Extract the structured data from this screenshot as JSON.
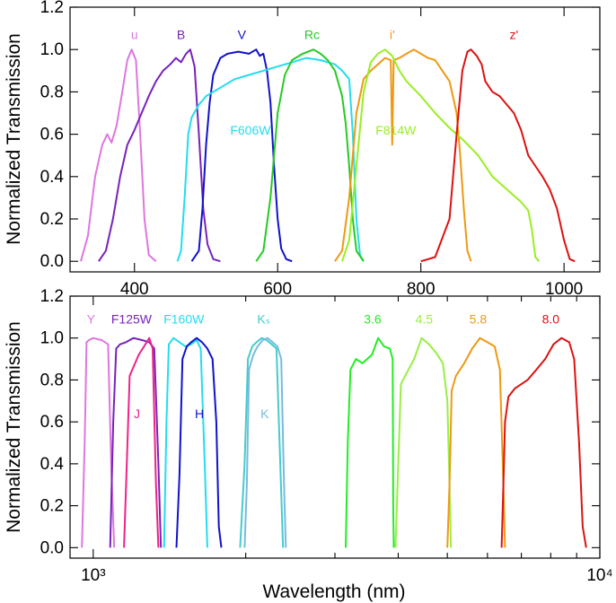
{
  "chart_data": [
    {
      "type": "line",
      "xlabel": "",
      "ylabel": "Normalized Transmission",
      "xlim": [
        310,
        1050
      ],
      "ylim": [
        -0.05,
        1.2
      ],
      "xscale": "linear",
      "grid": false,
      "x_tick_labels": [
        "400",
        "600",
        "800",
        "1000"
      ],
      "y_tick_labels": [
        "0.0",
        "0.2",
        "0.4",
        "0.6",
        "0.8",
        "1.0",
        "1.2"
      ],
      "series": [
        {
          "name": "u",
          "color": "#DD77DD",
          "label_at": [
            400,
            1.07
          ],
          "x": [
            325,
            335,
            345,
            355,
            362,
            368,
            375,
            382,
            390,
            396,
            402,
            408,
            414,
            420,
            430
          ],
          "y": [
            0,
            0.12,
            0.4,
            0.55,
            0.6,
            0.56,
            0.64,
            0.78,
            0.95,
            1.0,
            0.95,
            0.6,
            0.2,
            0.03,
            0
          ]
        },
        {
          "name": "B",
          "color": "#7722BB",
          "label_at": [
            465,
            1.07
          ],
          "x": [
            350,
            360,
            370,
            380,
            390,
            400,
            410,
            420,
            430,
            440,
            450,
            458,
            465,
            472,
            478,
            484,
            490,
            496,
            502,
            510,
            520
          ],
          "y": [
            0,
            0.05,
            0.2,
            0.4,
            0.55,
            0.62,
            0.7,
            0.78,
            0.85,
            0.9,
            0.93,
            0.96,
            0.94,
            0.98,
            1.0,
            0.92,
            0.6,
            0.25,
            0.08,
            0.01,
            0
          ]
        },
        {
          "name": "V",
          "color": "#1111CC",
          "label_at": [
            550,
            1.07
          ],
          "x": [
            480,
            490,
            495,
            500,
            505,
            510,
            520,
            530,
            545,
            560,
            570,
            575,
            580,
            585,
            590,
            595,
            600,
            605,
            612,
            620
          ],
          "y": [
            0,
            0.05,
            0.25,
            0.55,
            0.75,
            0.88,
            0.96,
            0.98,
            0.99,
            0.98,
            1.0,
            0.97,
            0.98,
            0.9,
            0.75,
            0.45,
            0.2,
            0.06,
            0.01,
            0
          ]
        },
        {
          "name": "F606W",
          "color": "#22DDEE",
          "label_at": [
            562,
            0.62
          ],
          "x": [
            460,
            465,
            470,
            475,
            480,
            490,
            500,
            520,
            540,
            560,
            580,
            600,
            620,
            640,
            660,
            680,
            690,
            700,
            705,
            710,
            715,
            720
          ],
          "y": [
            0,
            0.05,
            0.3,
            0.6,
            0.68,
            0.74,
            0.78,
            0.82,
            0.86,
            0.88,
            0.9,
            0.92,
            0.94,
            0.96,
            0.95,
            0.93,
            0.9,
            0.86,
            0.6,
            0.2,
            0.03,
            0
          ]
        },
        {
          "name": "Rc",
          "color": "#22CC22",
          "label_at": [
            648,
            1.07
          ],
          "x": [
            570,
            580,
            590,
            600,
            610,
            620,
            635,
            650,
            660,
            670,
            680,
            690,
            695,
            700,
            705,
            710,
            720
          ],
          "y": [
            0,
            0.05,
            0.3,
            0.7,
            0.88,
            0.95,
            0.98,
            1.0,
            0.98,
            0.95,
            0.9,
            0.78,
            0.65,
            0.45,
            0.2,
            0.05,
            0
          ]
        },
        {
          "name": "i'",
          "color": "#EE9911",
          "label_at": [
            760,
            1.07
          ],
          "x": [
            680,
            690,
            700,
            710,
            720,
            730,
            740,
            750,
            758,
            760,
            762,
            770,
            780,
            790,
            800,
            810,
            820,
            830,
            840,
            850,
            855,
            860,
            865,
            870
          ],
          "y": [
            0,
            0.05,
            0.3,
            0.7,
            0.86,
            0.9,
            0.93,
            0.96,
            0.95,
            0.55,
            0.95,
            0.96,
            0.98,
            1.0,
            0.98,
            0.96,
            0.95,
            0.9,
            0.85,
            0.7,
            0.5,
            0.25,
            0.05,
            0
          ]
        },
        {
          "name": "F814W",
          "color": "#99EE22",
          "label_at": [
            765,
            0.62
          ],
          "x": [
            690,
            700,
            710,
            720,
            730,
            740,
            750,
            760,
            770,
            780,
            800,
            820,
            840,
            860,
            880,
            900,
            920,
            940,
            950,
            955,
            960,
            965
          ],
          "y": [
            0,
            0.1,
            0.45,
            0.8,
            0.94,
            0.98,
            1.0,
            0.97,
            0.9,
            0.85,
            0.78,
            0.7,
            0.63,
            0.57,
            0.5,
            0.4,
            0.34,
            0.28,
            0.24,
            0.15,
            0.02,
            0
          ]
        },
        {
          "name": "z'",
          "color": "#DD1111",
          "label_at": [
            930,
            1.07
          ],
          "x": [
            800,
            820,
            840,
            850,
            858,
            865,
            870,
            878,
            885,
            890,
            900,
            910,
            920,
            930,
            940,
            950,
            960,
            970,
            980,
            990,
            1000,
            1008,
            1015
          ],
          "y": [
            0,
            0.02,
            0.2,
            0.6,
            0.9,
            0.99,
            1.0,
            0.97,
            0.93,
            0.85,
            0.8,
            0.78,
            0.74,
            0.7,
            0.62,
            0.5,
            0.45,
            0.4,
            0.34,
            0.25,
            0.1,
            0.01,
            0
          ]
        }
      ]
    },
    {
      "type": "line",
      "xlabel": "Wavelength (nm)",
      "ylabel": "Normalized Transmission",
      "xlim": [
        900,
        10000
      ],
      "ylim": [
        -0.05,
        1.2
      ],
      "xscale": "log",
      "grid": false,
      "x_tick_labels": [
        "10³",
        "10⁴"
      ],
      "y_tick_labels": [
        "0.0",
        "0.2",
        "0.4",
        "0.6",
        "0.8",
        "1.0",
        "1.2"
      ],
      "series": [
        {
          "name": "Y",
          "color": "#DD77DD",
          "label_at": [
            990,
            1.09
          ],
          "x": [
            950,
            962,
            970,
            980,
            1000,
            1040,
            1070,
            1085,
            1100
          ],
          "y": [
            0,
            0.5,
            0.98,
            0.99,
            1.0,
            0.99,
            0.97,
            0.4,
            0
          ]
        },
        {
          "name": "F125W",
          "color": "#7722BB",
          "label_at": [
            1190,
            1.09
          ],
          "x": [
            1080,
            1095,
            1110,
            1130,
            1160,
            1200,
            1250,
            1290,
            1320,
            1345,
            1360
          ],
          "y": [
            0,
            0.6,
            0.95,
            0.97,
            0.98,
            1.0,
            0.99,
            0.98,
            0.95,
            0.4,
            0
          ]
        },
        {
          "name": "J",
          "color": "#EE2288",
          "label_at": [
            1220,
            0.64
          ],
          "x": [
            1150,
            1165,
            1180,
            1200,
            1230,
            1260,
            1290,
            1310,
            1330,
            1345
          ],
          "y": [
            0,
            0.4,
            0.82,
            0.86,
            0.92,
            0.96,
            1.0,
            0.95,
            0.3,
            0
          ]
        },
        {
          "name": "F160W",
          "color": "#22DDEE",
          "label_at": [
            1510,
            1.09
          ],
          "x": [
            1380,
            1395,
            1410,
            1440,
            1480,
            1520,
            1560,
            1600,
            1630,
            1660,
            1680
          ],
          "y": [
            0,
            0.6,
            0.97,
            1.0,
            0.98,
            0.96,
            0.97,
            0.99,
            0.95,
            0.4,
            0
          ]
        },
        {
          "name": "H",
          "color": "#1111CC",
          "label_at": [
            1620,
            0.64
          ],
          "x": [
            1460,
            1480,
            1500,
            1530,
            1560,
            1600,
            1640,
            1680,
            1720,
            1750,
            1770,
            1790
          ],
          "y": [
            0,
            0.35,
            0.9,
            0.96,
            0.98,
            1.0,
            0.98,
            0.95,
            0.9,
            0.6,
            0.1,
            0
          ]
        },
        {
          "name": "Kₛ",
          "color": "#44CCCC",
          "label_at": [
            2170,
            1.09
          ],
          "x": [
            1950,
            1990,
            2020,
            2060,
            2100,
            2150,
            2200,
            2250,
            2300,
            2340,
            2370
          ],
          "y": [
            0,
            0.4,
            0.9,
            0.96,
            0.98,
            1.0,
            0.99,
            0.97,
            0.95,
            0.4,
            0
          ]
        },
        {
          "name": "K",
          "color": "#77BBDD",
          "label_at": [
            2180,
            0.64
          ],
          "x": [
            1990,
            2010,
            2030,
            2070,
            2110,
            2160,
            2210,
            2260,
            2310,
            2350,
            2380,
            2400
          ],
          "y": [
            0,
            0.3,
            0.85,
            0.92,
            0.96,
            0.99,
            1.0,
            0.98,
            0.96,
            0.9,
            0.3,
            0
          ]
        },
        {
          "name": "3.6",
          "color": "#22EE22",
          "label_at": [
            3560,
            1.09
          ],
          "x": [
            3150,
            3180,
            3220,
            3300,
            3400,
            3550,
            3650,
            3750,
            3850,
            3900,
            3910,
            3920
          ],
          "y": [
            0,
            0.5,
            0.85,
            0.9,
            0.88,
            0.92,
            1.0,
            0.96,
            0.95,
            0.9,
            0.2,
            0
          ]
        },
        {
          "name": "4.5",
          "color": "#99EE44",
          "label_at": [
            4500,
            1.09
          ],
          "x": [
            3950,
            4000,
            4050,
            4150,
            4300,
            4450,
            4600,
            4750,
            4900,
            5000,
            5050,
            5080
          ],
          "y": [
            0,
            0.4,
            0.78,
            0.83,
            0.9,
            1.0,
            0.97,
            0.93,
            0.88,
            0.7,
            0.3,
            0
          ]
        },
        {
          "name": "5.8",
          "color": "#EE9911",
          "label_at": [
            5750,
            1.09
          ],
          "x": [
            5000,
            5050,
            5100,
            5200,
            5400,
            5600,
            5800,
            6000,
            6200,
            6350,
            6450,
            6500
          ],
          "y": [
            0,
            0.3,
            0.75,
            0.82,
            0.88,
            0.95,
            1.0,
            0.98,
            0.96,
            0.85,
            0.3,
            0
          ]
        },
        {
          "name": "8.0",
          "color": "#DD1111",
          "label_at": [
            8000,
            1.09
          ],
          "x": [
            6400,
            6450,
            6500,
            6600,
            6800,
            7000,
            7200,
            7500,
            7800,
            8100,
            8400,
            8700,
            8900,
            9100,
            9250,
            9400
          ],
          "y": [
            0,
            0.3,
            0.6,
            0.72,
            0.76,
            0.78,
            0.8,
            0.85,
            0.9,
            0.97,
            1.0,
            0.98,
            0.9,
            0.5,
            0.1,
            0
          ]
        }
      ]
    }
  ]
}
